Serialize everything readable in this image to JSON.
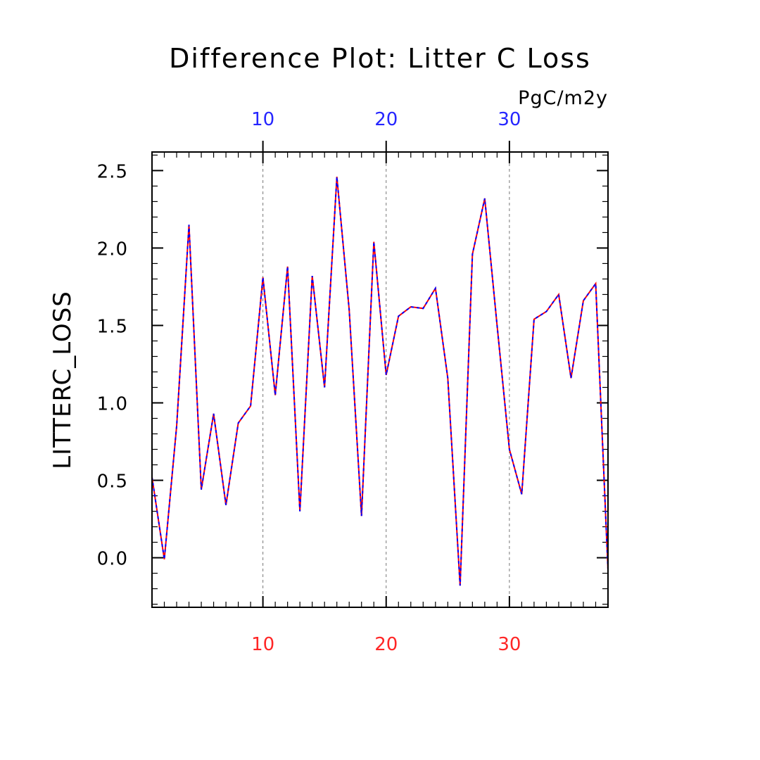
{
  "chart_data": {
    "type": "line",
    "title": "Difference Plot: Litter C Loss",
    "units": "PgC/m2y",
    "ylabel": "LITTERC_LOSS",
    "xlabel": "",
    "xlim": [
      1,
      38
    ],
    "ylim": [
      -0.32,
      2.62
    ],
    "yticks": [
      0.0,
      0.5,
      1.0,
      1.5,
      2.0,
      2.5
    ],
    "ytick_labels": [
      "0.0",
      "0.5",
      "1.0",
      "1.5",
      "2.0",
      "2.5"
    ],
    "xticks": [
      10,
      20,
      30
    ],
    "xtick_labels_top": [
      "10",
      "20",
      "30"
    ],
    "xtick_labels_bottom": [
      "10",
      "20",
      "30"
    ],
    "top_axis_color": "#2626ff",
    "bottom_axis_color": "#ff2626",
    "grid": "vertical-dashed",
    "x": [
      1,
      2,
      3,
      4,
      5,
      6,
      7,
      8,
      9,
      10,
      11,
      12,
      13,
      14,
      15,
      16,
      17,
      18,
      19,
      20,
      21,
      22,
      23,
      24,
      25,
      26,
      27,
      28,
      29,
      30,
      31,
      32,
      33,
      34,
      35,
      36,
      37,
      38
    ],
    "series": [
      {
        "color": "#ff0000",
        "style": "solid",
        "values": [
          0.52,
          -0.01,
          0.85,
          2.15,
          0.44,
          0.93,
          0.34,
          0.87,
          0.98,
          1.81,
          1.05,
          1.88,
          0.3,
          1.82,
          1.1,
          2.46,
          1.6,
          0.27,
          2.04,
          1.18,
          1.56,
          1.62,
          1.61,
          1.74,
          1.16,
          -0.18,
          1.96,
          2.32,
          1.5,
          0.7,
          0.41,
          1.54,
          1.59,
          1.7,
          1.16,
          1.66,
          1.77,
          -0.08
        ]
      },
      {
        "color": "#0000ff",
        "style": "dashed",
        "values": [
          0.52,
          -0.01,
          0.85,
          2.15,
          0.44,
          0.93,
          0.34,
          0.87,
          0.98,
          1.81,
          1.05,
          1.88,
          0.3,
          1.82,
          1.1,
          2.46,
          1.6,
          0.27,
          2.04,
          1.18,
          1.56,
          1.62,
          1.61,
          1.74,
          1.16,
          -0.18,
          1.96,
          2.32,
          1.5,
          0.7,
          0.41,
          1.54,
          1.59,
          1.7,
          1.16,
          1.66,
          1.77,
          -0.08
        ]
      }
    ]
  }
}
